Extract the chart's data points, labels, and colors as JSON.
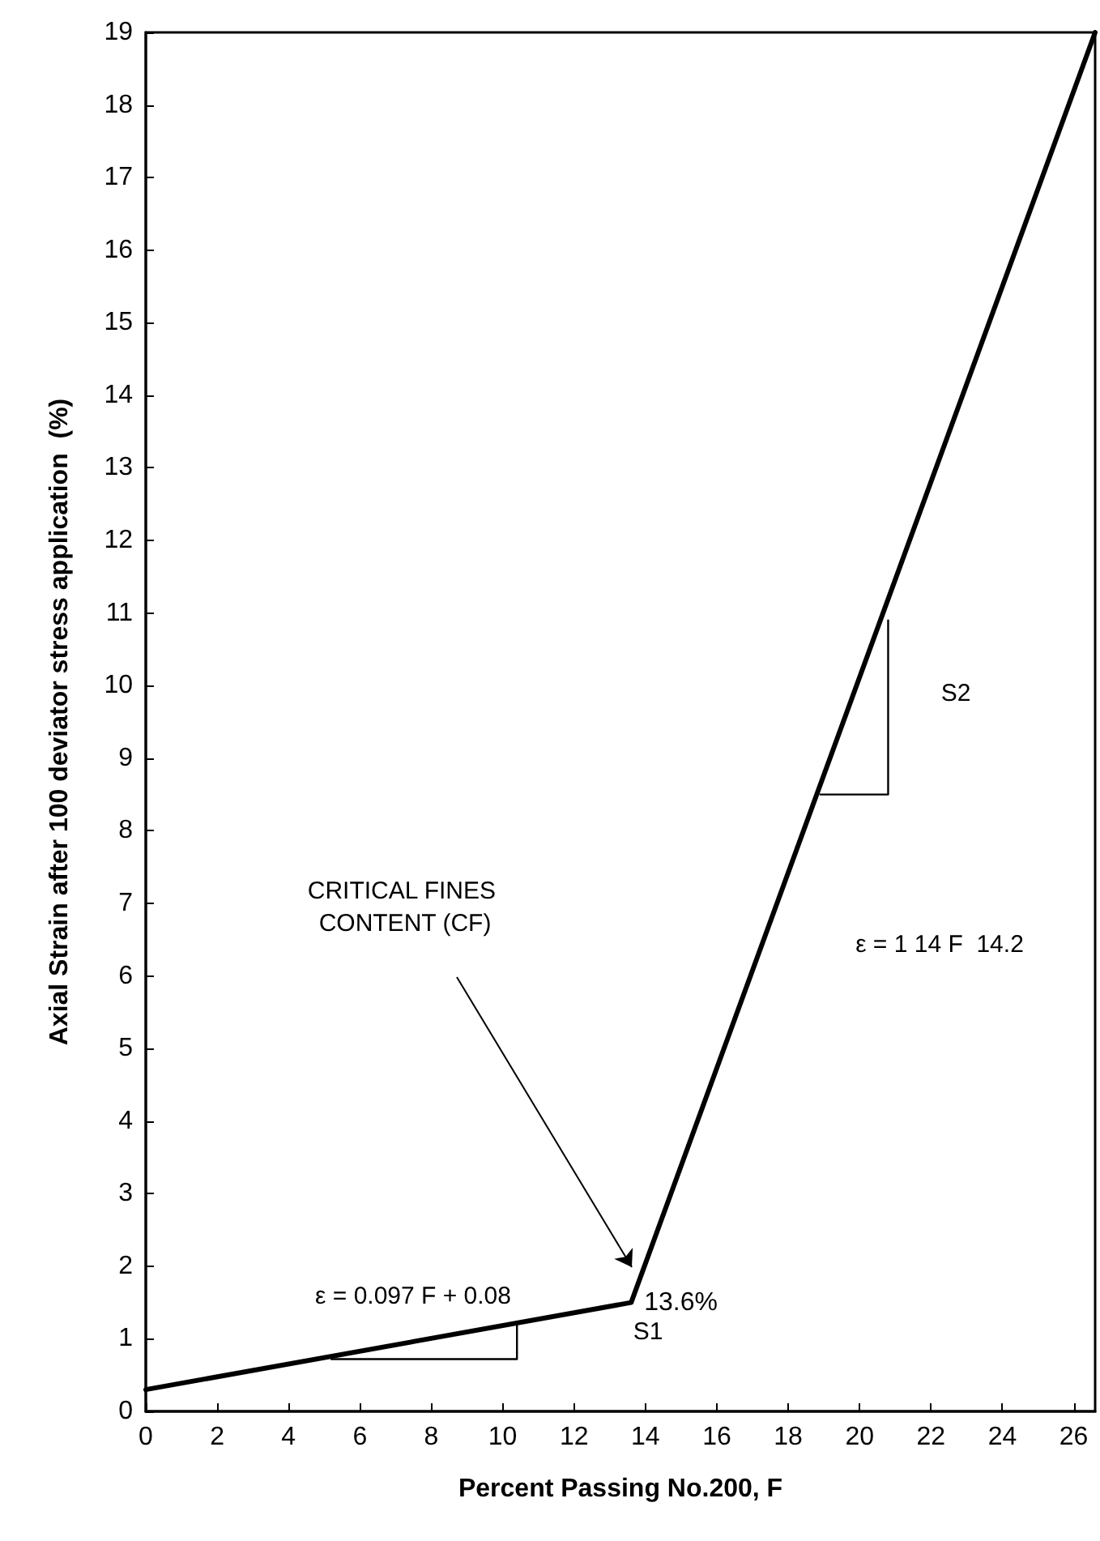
{
  "chart_data": {
    "type": "line",
    "xlabel": "Percent Passing No.200, F",
    "ylabel": "Axial Strain after 100 deviator stress application  (%)",
    "series": [
      {
        "color": "#000000",
        "x": [
          0,
          13.6,
          26.6
        ],
        "values": [
          0.3,
          1.5,
          19
        ]
      },
      {
        "color": "#000000",
        "x": [
          5.2,
          10.4,
          10.4
        ],
        "values": [
          0.72,
          0.72,
          1.22
        ]
      },
      {
        "color": "#000000",
        "x": [
          18.9,
          20.8,
          20.8
        ],
        "values": [
          8.5,
          8.5,
          10.9
        ]
      }
    ],
    "xlim": [
      0,
      26.6
    ],
    "xticks": [
      0,
      2,
      4,
      6,
      8,
      10,
      12,
      14,
      16,
      18,
      20,
      22,
      24,
      26
    ],
    "ylim": [
      0,
      19
    ],
    "yticks": [
      0,
      1,
      2,
      3,
      4,
      5,
      6,
      7,
      8,
      9,
      10,
      11,
      12,
      13,
      14,
      15,
      16,
      17,
      18,
      19
    ],
    "marker": "none",
    "line_style": "solid",
    "annotations": [
      "CRITICAL FINES CONTENT (CF)",
      {
        "text": "13.6%",
        "x": 13.6,
        "y": 1.5
      },
      "ε = 0.097 F + 0.08",
      "ε = 1 14 F  14.2",
      "S1",
      "S2"
    ]
  }
}
